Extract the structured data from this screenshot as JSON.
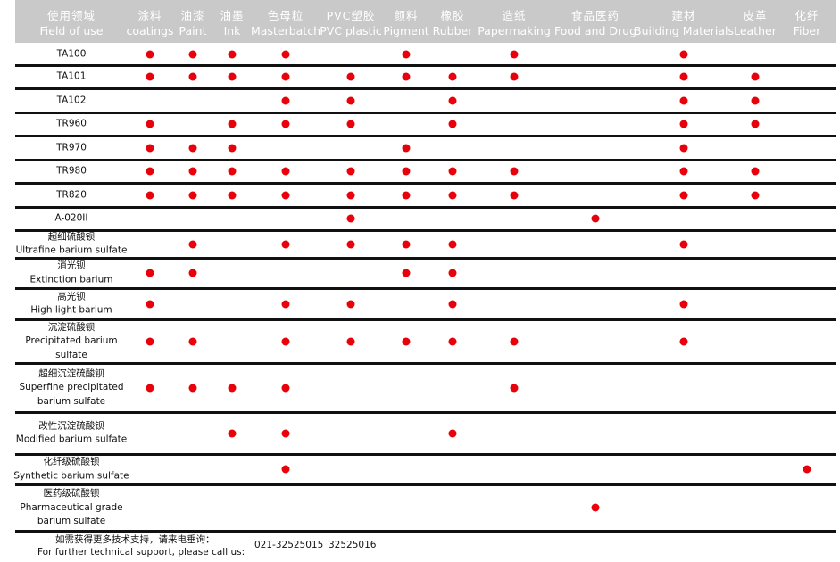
{
  "header": {
    "columns": [
      {
        "zh": "使用领域",
        "en": "Field of use"
      },
      {
        "zh": "涂料",
        "en": "coatings"
      },
      {
        "zh": "油漆",
        "en": "Paint"
      },
      {
        "zh": "油墨",
        "en": "Ink"
      },
      {
        "zh": "色母粒",
        "en": "Masterbatch"
      },
      {
        "zh": "PVC塑胶",
        "en": "PVC plastic"
      },
      {
        "zh": "颜料",
        "en": "Pigment"
      },
      {
        "zh": "橡胶",
        "en": "Rubber"
      },
      {
        "zh": "造纸",
        "en": "Papermaking"
      },
      {
        "zh": "食品医药",
        "en": "Food and Drug"
      },
      {
        "zh": "建材",
        "en": "Building Materials"
      },
      {
        "zh": "皮革",
        "en": "Leather"
      },
      {
        "zh": "化纤",
        "en": "Fiber"
      }
    ]
  },
  "table": {
    "rows": [
      {
        "label": [
          "TA100"
        ],
        "uses": [
          true,
          true,
          true,
          true,
          false,
          true,
          false,
          true,
          false,
          true,
          false,
          false
        ]
      },
      {
        "label": [
          "TA101"
        ],
        "uses": [
          true,
          true,
          true,
          true,
          true,
          true,
          true,
          true,
          false,
          true,
          true,
          false
        ]
      },
      {
        "label": [
          "TA102"
        ],
        "uses": [
          false,
          false,
          false,
          true,
          true,
          false,
          true,
          false,
          false,
          true,
          true,
          false
        ]
      },
      {
        "label": [
          "TR960"
        ],
        "uses": [
          true,
          false,
          true,
          true,
          true,
          false,
          true,
          false,
          false,
          true,
          true,
          false
        ]
      },
      {
        "label": [
          "TR970"
        ],
        "uses": [
          true,
          true,
          true,
          false,
          false,
          true,
          false,
          false,
          false,
          true,
          false,
          false
        ]
      },
      {
        "label": [
          "TR980"
        ],
        "uses": [
          true,
          true,
          true,
          true,
          true,
          true,
          true,
          true,
          false,
          true,
          true,
          false
        ]
      },
      {
        "label": [
          "TR820"
        ],
        "uses": [
          true,
          true,
          true,
          true,
          true,
          true,
          true,
          true,
          false,
          true,
          true,
          false
        ]
      },
      {
        "label": [
          "A-020II"
        ],
        "uses": [
          false,
          false,
          false,
          false,
          true,
          false,
          false,
          false,
          true,
          false,
          false,
          false
        ]
      },
      {
        "label": [
          "超细硫酸钡",
          "Ultrafine barium sulfate"
        ],
        "uses": [
          false,
          true,
          false,
          true,
          true,
          true,
          true,
          false,
          false,
          true,
          false,
          false
        ]
      },
      {
        "label": [
          "消光钡",
          "Extinction barium"
        ],
        "uses": [
          true,
          true,
          false,
          false,
          false,
          true,
          true,
          false,
          false,
          false,
          false,
          false
        ]
      },
      {
        "label": [
          "高光钡",
          "High light barium"
        ],
        "uses": [
          true,
          false,
          false,
          true,
          true,
          false,
          true,
          false,
          false,
          true,
          false,
          false
        ]
      },
      {
        "label": [
          "沉淀硫酸钡",
          "Precipitated barium",
          "sulfate"
        ],
        "uses": [
          true,
          true,
          false,
          true,
          true,
          true,
          true,
          true,
          false,
          true,
          false,
          false
        ]
      },
      {
        "label": [
          "超细沉淀硫酸钡",
          "Superfine precipitated",
          "barium sulfate"
        ],
        "uses": [
          true,
          true,
          true,
          true,
          false,
          false,
          false,
          true,
          false,
          false,
          false,
          false
        ]
      },
      {
        "label": [
          "改性沉淀硫酸钡",
          "Modified barium sulfate"
        ],
        "uses": [
          false,
          false,
          true,
          true,
          false,
          false,
          true,
          false,
          false,
          false,
          false,
          false
        ]
      },
      {
        "label": [
          "化纤级硫酸钡",
          "Synthetic barium sulfate"
        ],
        "uses": [
          false,
          false,
          false,
          true,
          false,
          false,
          false,
          false,
          false,
          false,
          false,
          true
        ]
      },
      {
        "label": [
          "医药级硫酸钡",
          "Pharmaceutical grade",
          "barium sulfate"
        ],
        "uses": [
          false,
          false,
          false,
          false,
          false,
          false,
          false,
          false,
          true,
          false,
          false,
          false
        ]
      }
    ]
  },
  "footer": {
    "zh": "如需获得更多技术支持，请来电垂询：",
    "en": "For further technical support, please call us:",
    "phones": [
      "021-32525015",
      "32525016"
    ]
  }
}
